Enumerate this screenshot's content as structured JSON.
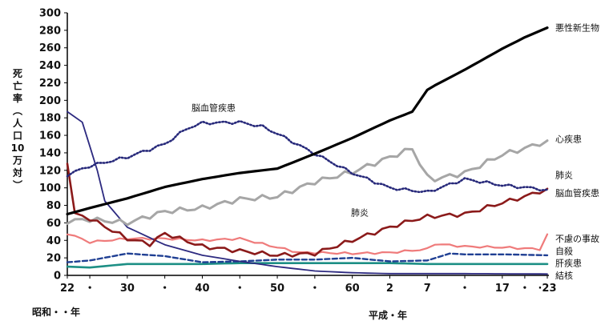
{
  "chart_data": {
    "type": "line",
    "ylabel_chars": [
      "死",
      "亡",
      "率",
      "︵",
      "人",
      "口",
      "10",
      "万",
      "対",
      "︶"
    ],
    "ylim": [
      0,
      300
    ],
    "yticks": [
      0,
      20,
      40,
      60,
      80,
      100,
      120,
      140,
      160,
      180,
      200,
      220,
      240,
      260,
      280,
      300
    ],
    "x_start": 1947,
    "x_end": 2011,
    "xticks": [
      {
        "x": 1947,
        "label": "22"
      },
      {
        "x": 1950,
        "label": "・"
      },
      {
        "x": 1955,
        "label": "30"
      },
      {
        "x": 1960,
        "label": "・"
      },
      {
        "x": 1965,
        "label": "40"
      },
      {
        "x": 1970,
        "label": "・"
      },
      {
        "x": 1975,
        "label": "50"
      },
      {
        "x": 1980,
        "label": "・"
      },
      {
        "x": 1985,
        "label": "60"
      },
      {
        "x": 1990,
        "label": "2"
      },
      {
        "x": 1995,
        "label": "7"
      },
      {
        "x": 2000,
        "label": "・"
      },
      {
        "x": 2005,
        "label": "17"
      },
      {
        "x": 2008,
        "label": "・"
      },
      {
        "x": 2011,
        "label": "·23"
      }
    ],
    "era_showa": "昭和・・年",
    "era_heisei": "平成・年",
    "grid": false,
    "legend": "labels at line ends (right) and inline",
    "inline_labels": [
      {
        "text": "脳血管疾患",
        "x": 1966.5,
        "y": 188
      },
      {
        "text": "肺炎",
        "x": 1986,
        "y": 68
      }
    ],
    "series": [
      {
        "name": "悪性新生物",
        "color": "#000000",
        "style": "solid",
        "width": 3.2,
        "x": [
          1947,
          1950,
          1955,
          1960,
          1965,
          1970,
          1975,
          1980,
          1985,
          1990,
          1993,
          1995,
          1996,
          2000,
          2005,
          2008,
          2011
        ],
        "y": [
          70,
          77,
          88,
          101,
          110,
          117,
          122,
          139,
          157,
          177,
          187,
          212,
          217,
          235,
          259,
          272,
          283
        ]
      },
      {
        "name": "心疾患",
        "color": "#a6a6a6",
        "style": "solid",
        "width": 3,
        "x": [
          1947,
          1950,
          1955,
          1960,
          1965,
          1970,
          1975,
          1980,
          1985,
          1990,
          1993,
          1994,
          1995,
          1996,
          2000,
          2005,
          2008,
          2011
        ],
        "y": [
          62,
          64,
          60,
          73,
          77,
          87,
          90,
          107,
          118,
          135,
          145,
          128,
          112,
          110,
          117,
          138,
          145,
          154
        ],
        "jitter": 3
      },
      {
        "name": "肺炎",
        "color": "#8b1a1a",
        "style": "solid",
        "width": 2.6,
        "x": [
          1947,
          1948,
          1950,
          1955,
          1958,
          1960,
          1965,
          1970,
          1975,
          1980,
          1985,
          1990,
          1993,
          1995,
          2000,
          2005,
          2008,
          2011
        ],
        "y": [
          130,
          70,
          65,
          42,
          36,
          48,
          33,
          28,
          23,
          25,
          40,
          55,
          63,
          67,
          70,
          83,
          90,
          99
        ],
        "jitter": 2.5
      },
      {
        "name": "脳血管疾患",
        "color": "#27297a",
        "style": "dotted",
        "width": 2.6,
        "x": [
          1947,
          1950,
          1955,
          1960,
          1963,
          1965,
          1970,
          1973,
          1975,
          1980,
          1985,
          1990,
          1995,
          2000,
          2005,
          2011
        ],
        "y": [
          115,
          125,
          135,
          150,
          168,
          174,
          175,
          170,
          162,
          139,
          117,
          100,
          95,
          110,
          103,
          98
        ],
        "jitter": 1.8
      },
      {
        "name": "結核",
        "color": "#2d2a80",
        "style": "solid",
        "width": 1.8,
        "x": [
          1947,
          1949,
          1951,
          1952,
          1955,
          1960,
          1965,
          1970,
          1975,
          1980,
          1985,
          1990,
          2000,
          2011
        ],
        "y": [
          187,
          175,
          120,
          85,
          55,
          35,
          23,
          16,
          10,
          5,
          3,
          2,
          2,
          1.6
        ]
      },
      {
        "name": "不慮の事故",
        "color": "#ef7b7b",
        "style": "solid",
        "width": 2.2,
        "x": [
          1947,
          1950,
          1955,
          1960,
          1965,
          1970,
          1975,
          1978,
          1980,
          1985,
          1990,
          1995,
          1996,
          2000,
          2005,
          2010,
          2011
        ],
        "y": [
          48,
          38,
          42,
          42,
          40,
          42,
          32,
          26,
          26,
          25,
          26,
          30,
          36,
          33,
          32,
          30,
          47
        ],
        "jitter": 1.2
      },
      {
        "name": "自殺",
        "color": "#1f3f93",
        "style": "dashed",
        "width": 2.4,
        "x": [
          1947,
          1950,
          1955,
          1960,
          1965,
          1970,
          1975,
          1980,
          1985,
          1990,
          1995,
          1998,
          2000,
          2005,
          2011
        ],
        "y": [
          15,
          17,
          25,
          22,
          15,
          16,
          18,
          18,
          20,
          16,
          17,
          25,
          24,
          24,
          23
        ]
      },
      {
        "name": "肝疾患",
        "color": "#1d8f85",
        "style": "solid",
        "width": 2.6,
        "x": [
          1947,
          1950,
          1955,
          1960,
          1965,
          1970,
          1975,
          1980,
          1985,
          1990,
          1995,
          2000,
          2005,
          2011
        ],
        "y": [
          10,
          9,
          13,
          13,
          13,
          14,
          14,
          14,
          14,
          14,
          13,
          13,
          13,
          13
        ]
      }
    ],
    "line_labels": [
      {
        "series": "悪性新生物",
        "text": "悪性新生物",
        "y": 283
      },
      {
        "series": "心疾患",
        "text": "心疾患",
        "y": 156
      },
      {
        "series": "肺炎",
        "text": "肺炎",
        "y": 115
      },
      {
        "series": "脳血管疾患",
        "text": "脳血管疾患",
        "y": 94
      },
      {
        "series": "不慮の事故",
        "text": "不慮の事故",
        "y": 42
      },
      {
        "series": "自殺",
        "text": "自殺",
        "y": 28
      },
      {
        "series": "肝疾患",
        "text": "肝疾患",
        "y": 14
      },
      {
        "series": "結核",
        "text": "結核",
        "y": 0
      }
    ]
  }
}
